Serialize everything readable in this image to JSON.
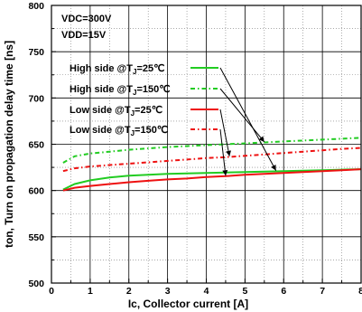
{
  "chart_data": {
    "type": "line",
    "xlabel": "Ic, Collector current [A]",
    "ylabel": "ton, Turn on propagation delay time [ns]",
    "xlim": [
      0,
      8
    ],
    "ylim": [
      500,
      800
    ],
    "x_ticks": [
      "0",
      "1",
      "2",
      "3",
      "4",
      "5",
      "6",
      "7",
      "8"
    ],
    "y_ticks": [
      "500",
      "550",
      "600",
      "650",
      "700",
      "750",
      "800"
    ],
    "x_minor_step": 0.5,
    "y_minor_step": 25,
    "grid": true,
    "legend_position": "upper-left",
    "conditions": [
      "VDC=300V",
      "VDD=15V"
    ],
    "series": [
      {
        "name": "High side @TJ=25℃",
        "color": "#22cc22",
        "style": "solid",
        "x": [
          0.3,
          0.6,
          1,
          1.5,
          2,
          2.5,
          3,
          3.5,
          4,
          4.5,
          5,
          5.5,
          6,
          6.5,
          7,
          7.5,
          8
        ],
        "y": [
          601,
          607,
          611,
          614,
          616,
          617,
          618,
          618.5,
          619,
          619.5,
          620,
          620.5,
          621,
          621.5,
          622,
          622.5,
          623
        ]
      },
      {
        "name": "High side @TJ=150℃",
        "color": "#22cc22",
        "style": "dashdot",
        "x": [
          0.3,
          0.6,
          1,
          1.5,
          2,
          2.5,
          3,
          3.5,
          4,
          4.5,
          5,
          5.5,
          6,
          6.5,
          7,
          7.5,
          8
        ],
        "y": [
          630,
          637,
          640,
          642,
          644,
          645.5,
          647,
          648,
          649,
          650,
          651,
          652,
          653,
          654,
          655,
          656,
          657
        ]
      },
      {
        "name": "Low side @TJ=25℃",
        "color": "#ee1111",
        "style": "solid",
        "x": [
          0.3,
          0.6,
          1,
          1.5,
          2,
          2.5,
          3,
          3.5,
          4,
          4.5,
          5,
          5.5,
          6,
          6.5,
          7,
          7.5,
          8
        ],
        "y": [
          600,
          603,
          605,
          607,
          609,
          610.5,
          612,
          613,
          614.5,
          615.5,
          617,
          618,
          619,
          620,
          621,
          622,
          623
        ]
      },
      {
        "name": "Low side @TJ=150℃",
        "color": "#ee1111",
        "style": "dashdot",
        "x": [
          0.3,
          0.6,
          1,
          1.5,
          2,
          2.5,
          3,
          3.5,
          4,
          4.5,
          5,
          5.5,
          6,
          6.5,
          7,
          7.5,
          8
        ],
        "y": [
          621,
          624,
          626,
          627.5,
          629,
          630.5,
          632,
          633.5,
          635,
          636,
          637.5,
          639,
          640.5,
          642,
          643.5,
          645,
          646
        ]
      }
    ],
    "annotations": [
      {
        "from": "legend-0",
        "to": [
          5.8,
          621.5
        ]
      },
      {
        "from": "legend-1",
        "to": [
          5.5,
          652.5
        ]
      },
      {
        "from": "legend-2",
        "to": [
          4.6,
          637
        ]
      },
      {
        "from": "legend-3",
        "to": [
          4.5,
          616
        ]
      }
    ]
  }
}
